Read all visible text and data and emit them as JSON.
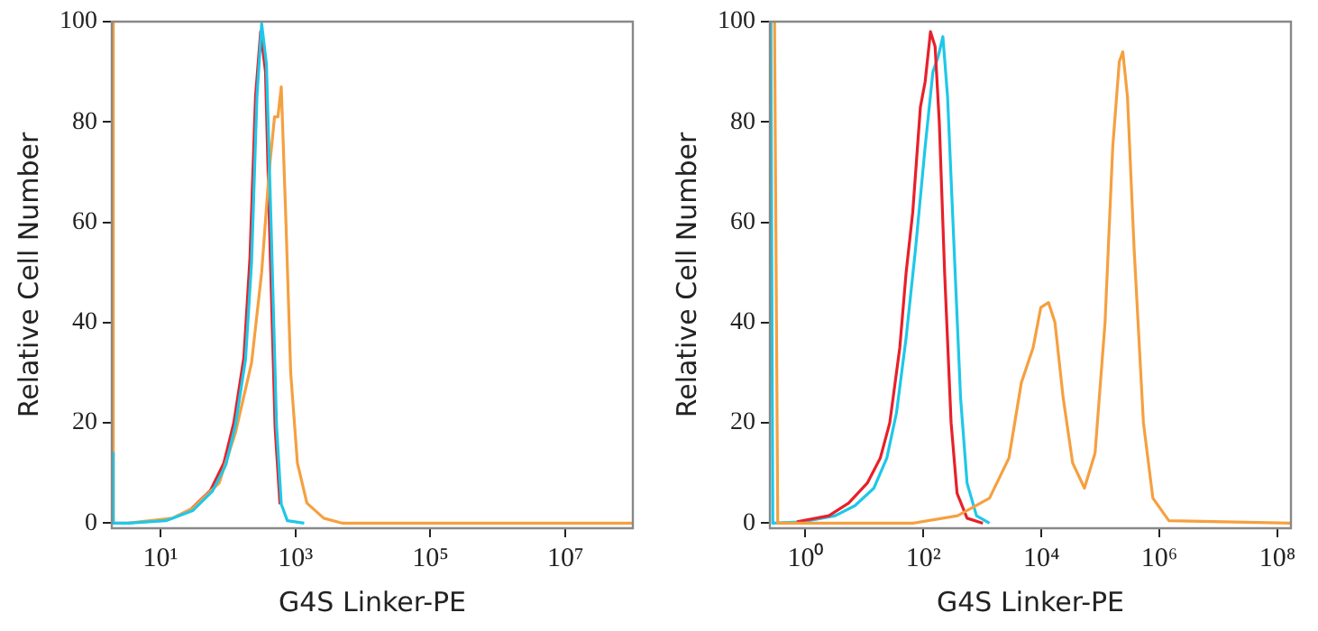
{
  "chart_data": [
    {
      "type": "line",
      "xlabel": "G4S Linker-PE",
      "ylabel": "Relative Cell Number",
      "log": "x",
      "xlim": [
        1.9,
        100000000
      ],
      "ylim": [
        -1,
        100
      ],
      "xticks": [
        {
          "value": 10,
          "label": "10¹"
        },
        {
          "value": 1000,
          "label": "10³"
        },
        {
          "value": 100000,
          "label": "10⁵"
        },
        {
          "value": 10000000,
          "label": "10⁷"
        }
      ],
      "yticks": [
        0,
        20,
        40,
        60,
        80,
        100
      ],
      "grid": false,
      "legend": false,
      "marker": "none",
      "line_style": "solid",
      "series": [
        {
          "color": "#e8202a",
          "x": [
            27,
            55,
            87,
            122,
            172,
            212,
            256,
            305,
            360,
            415,
            500,
            590
          ],
          "values": [
            2.5,
            6.5,
            12,
            20,
            33,
            53,
            85,
            98,
            90,
            58,
            19,
            3.8
          ]
        },
        {
          "color": "#f5a040",
          "x": [
            1.9,
            2.0,
            3.3,
            15,
            30,
            74,
            129,
            224,
            316,
            407,
            490,
            550,
            617,
            724,
            851,
            1070,
            1480,
            2630,
            5010,
            100000000
          ],
          "values": [
            100,
            0,
            0,
            1,
            3,
            8,
            18,
            32,
            50,
            70,
            81,
            81,
            87,
            60,
            30,
            12,
            4,
            1,
            0,
            0
          ]
        },
        {
          "color": "#1ec8e8",
          "x": [
            1.9,
            2.0,
            3.3,
            12,
            30,
            59,
            93,
            129,
            182,
            224,
            269,
            316,
            372,
            437,
            525,
            617,
            759,
            1350
          ],
          "values": [
            14,
            0,
            0,
            0.5,
            2.5,
            6.4,
            11.6,
            19.5,
            32.6,
            52,
            85,
            99.6,
            91.5,
            59,
            19.5,
            3.8,
            0.5,
            0
          ]
        }
      ]
    },
    {
      "type": "line",
      "xlabel": "G4S Linker-PE",
      "ylabel": "Relative Cell Number",
      "log": "x",
      "xlim": [
        0.25,
        170000000
      ],
      "ylim": [
        -1,
        100
      ],
      "xticks": [
        {
          "value": 1,
          "label": "10⁰"
        },
        {
          "value": 100,
          "label": "10²"
        },
        {
          "value": 10000,
          "label": "10⁴"
        },
        {
          "value": 1000000,
          "label": "10⁶"
        },
        {
          "value": 100000000,
          "label": "10⁸"
        }
      ],
      "yticks": [
        0,
        20,
        40,
        60,
        80,
        100
      ],
      "grid": false,
      "legend": false,
      "marker": "none",
      "line_style": "solid",
      "series": [
        {
          "color": "#1ec8e8",
          "x": [
            0.26,
            0.28,
            0.93,
            3.2,
            6.9,
            14.5,
            24,
            35,
            51,
            74,
            107,
            145,
            178,
            214,
            257,
            331,
            427,
            550,
            794,
            1320
          ],
          "values": [
            100,
            0,
            0.3,
            1.5,
            3.5,
            7,
            13,
            22,
            37,
            55,
            75,
            90,
            93,
            97,
            85,
            55,
            25,
            8,
            1.5,
            0
          ]
        },
        {
          "color": "#e8202a",
          "x": [
            0.72,
            2.5,
            5.4,
            11.2,
            18.6,
            26.9,
            39.8,
            51,
            66,
            89,
            107,
            132,
            158,
            186,
            229,
            295,
            372,
            550,
            1020
          ],
          "values": [
            0.3,
            1.5,
            4,
            8,
            13,
            20,
            35,
            50,
            62,
            83,
            88,
            98,
            95,
            80,
            50,
            20,
            6,
            1,
            0
          ]
        },
        {
          "color": "#f5a040",
          "x": [
            0.3,
            0.34,
            66,
            380,
            1320,
            2820,
            4570,
            7240,
            9770,
            13200,
            17000,
            23400,
            33900,
            53700,
            81300,
            120000,
            162000,
            209000,
            240000,
            288000,
            372000,
            537000,
            776000,
            1450000,
            170000000
          ],
          "values": [
            100,
            0,
            0,
            1.5,
            5,
            13,
            28,
            35,
            43,
            44,
            40,
            25,
            12,
            7,
            14,
            40,
            75,
            92,
            94,
            85,
            55,
            20,
            5,
            0.5,
            0
          ]
        }
      ]
    }
  ]
}
